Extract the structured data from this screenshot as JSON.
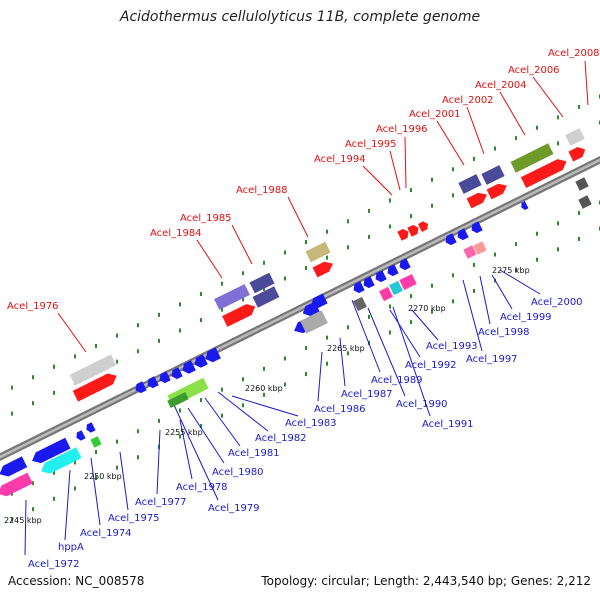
{
  "title": "Acidothermus cellulolyticus 11B, complete genome",
  "footer": {
    "accession": "Accession: NC_008578",
    "topology": "Topology: circular; Length: 2,443,540 bp; Genes: 2,212"
  },
  "colors": {
    "red_label": "#dd1111",
    "blue_label": "#1a1acc",
    "axis": "#8a8a8a",
    "tick": "#2a8a2a"
  },
  "position_labels": [
    "2245 kbp",
    "2250 kbp",
    "2255 kbp",
    "2260 kbp",
    "2265 kbp",
    "2270 kbp",
    "2275 kbp"
  ],
  "forward_labels": [
    "Acel_1976",
    "Acel_1984",
    "Acel_1985",
    "Acel_1988",
    "Acel_1994",
    "Acel_1995",
    "Acel_1996",
    "Acel_2001",
    "Acel_2002",
    "Acel_2004",
    "Acel_2006",
    "Acel_2008"
  ],
  "reverse_labels": [
    "Acel_1972",
    "hppA",
    "Acel_1974",
    "Acel_1975",
    "Acel_1977",
    "Acel_1978",
    "Acel_1979",
    "Acel_1980",
    "Acel_1981",
    "Acel_1982",
    "Acel_1983",
    "Acel_1986",
    "Acel_1987",
    "Acel_1989",
    "Acel_1990",
    "Acel_1991",
    "Acel_1992",
    "Acel_1993",
    "Acel_1997",
    "Acel_1998",
    "Acel_1999",
    "Acel_2000"
  ]
}
